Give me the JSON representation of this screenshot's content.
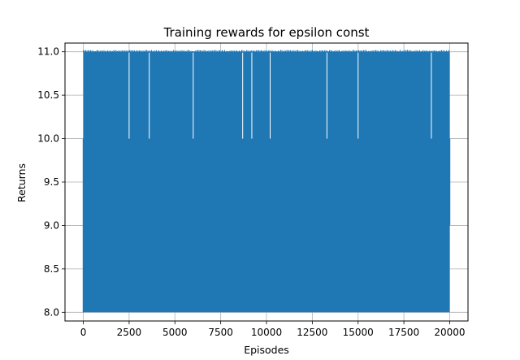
{
  "chart_data": {
    "type": "line",
    "title": "Training rewards for epsilon const",
    "xlabel": "Episodes",
    "ylabel": "Returns",
    "xlim": [
      -1000,
      21000
    ],
    "ylim": [
      7.9,
      11.1
    ],
    "xticks": [
      0,
      2500,
      5000,
      7500,
      10000,
      12500,
      15000,
      17500,
      20000
    ],
    "xtick_labels": [
      "0",
      "2500",
      "5000",
      "7500",
      "10000",
      "12500",
      "15000",
      "17500",
      "20000"
    ],
    "yticks": [
      8.0,
      8.5,
      9.0,
      9.5,
      10.0,
      10.5,
      11.0
    ],
    "ytick_labels": [
      "8.0",
      "8.5",
      "9.0",
      "9.5",
      "10.0",
      "10.5",
      "11.0"
    ],
    "grid": true,
    "series": [
      {
        "color": "#1f77b4",
        "x_range": [
          0,
          20000
        ],
        "min": 8.0,
        "max": 11.0,
        "description": "returns oscillate densely between 8.0 and 11.0 across all episodes",
        "gaps_near_11": [
          2500,
          3600,
          6000,
          8700,
          9200,
          10200,
          13300,
          15000,
          19000
        ]
      }
    ]
  }
}
